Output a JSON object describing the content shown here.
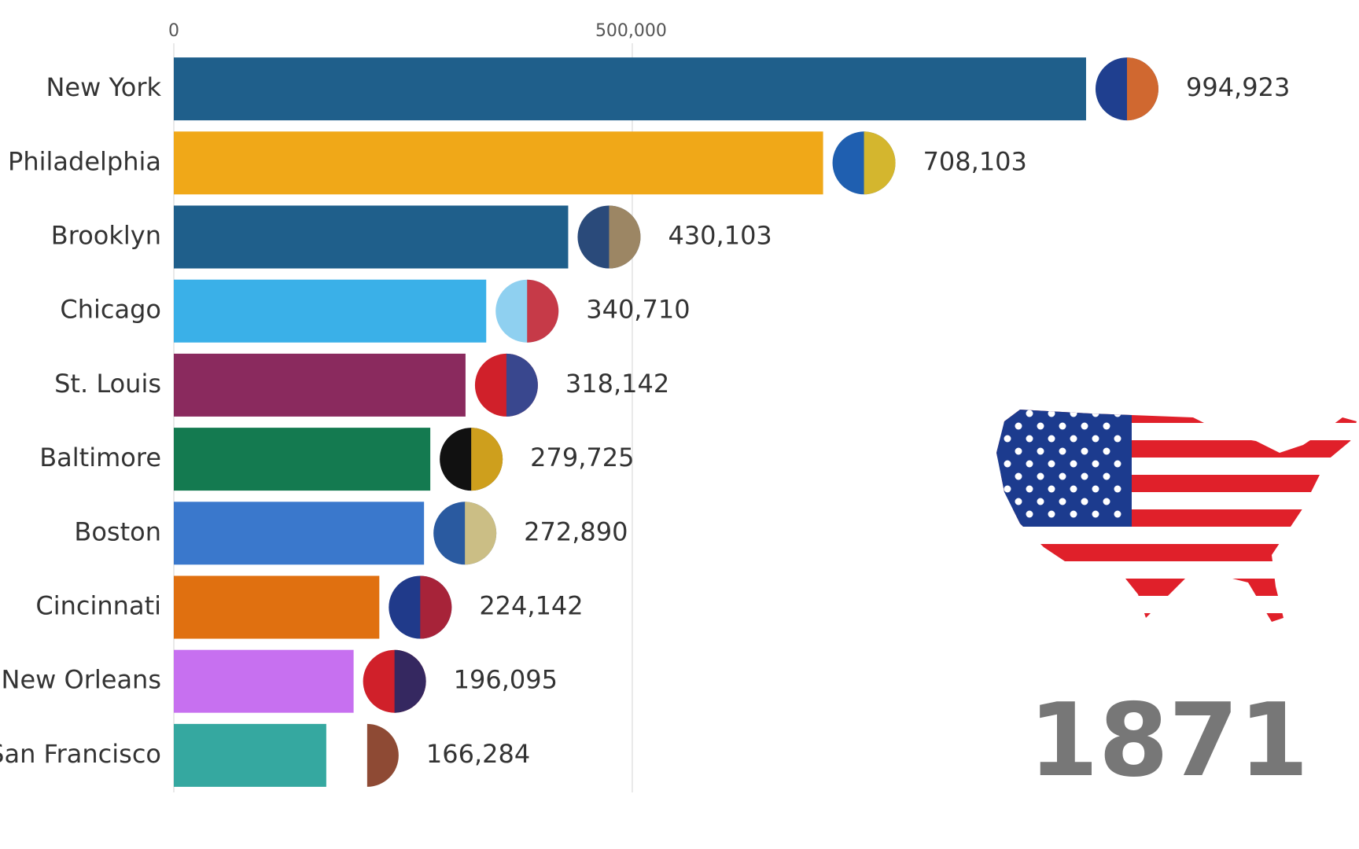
{
  "chart_data": {
    "type": "bar",
    "categories": [
      "New York",
      "Philadelphia",
      "Brooklyn",
      "Chicago",
      "St. Louis",
      "Baltimore",
      "Boston",
      "Cincinnati",
      "New Orleans",
      "San Francisco"
    ],
    "values": [
      994923,
      708103,
      430103,
      340710,
      318142,
      279725,
      272890,
      224142,
      196095,
      166284
    ],
    "value_labels": [
      "994,923",
      "708,103",
      "430,103",
      "340,710",
      "318,142",
      "279,725",
      "272,890",
      "224,142",
      "196,095",
      "166,284"
    ],
    "colors": [
      "#1f5f8b",
      "#f0a818",
      "#1f5f8b",
      "#3ab0e8",
      "#8a2a5e",
      "#147a50",
      "#3a78cc",
      "#e07010",
      "#c770f0",
      "#35a8a0"
    ],
    "xlim": [
      0,
      1290000
    ],
    "xticks": [
      0,
      {
        "value": 500000,
        "label": "500,000"
      }
    ],
    "grid": true,
    "annotation": "1871"
  }
}
